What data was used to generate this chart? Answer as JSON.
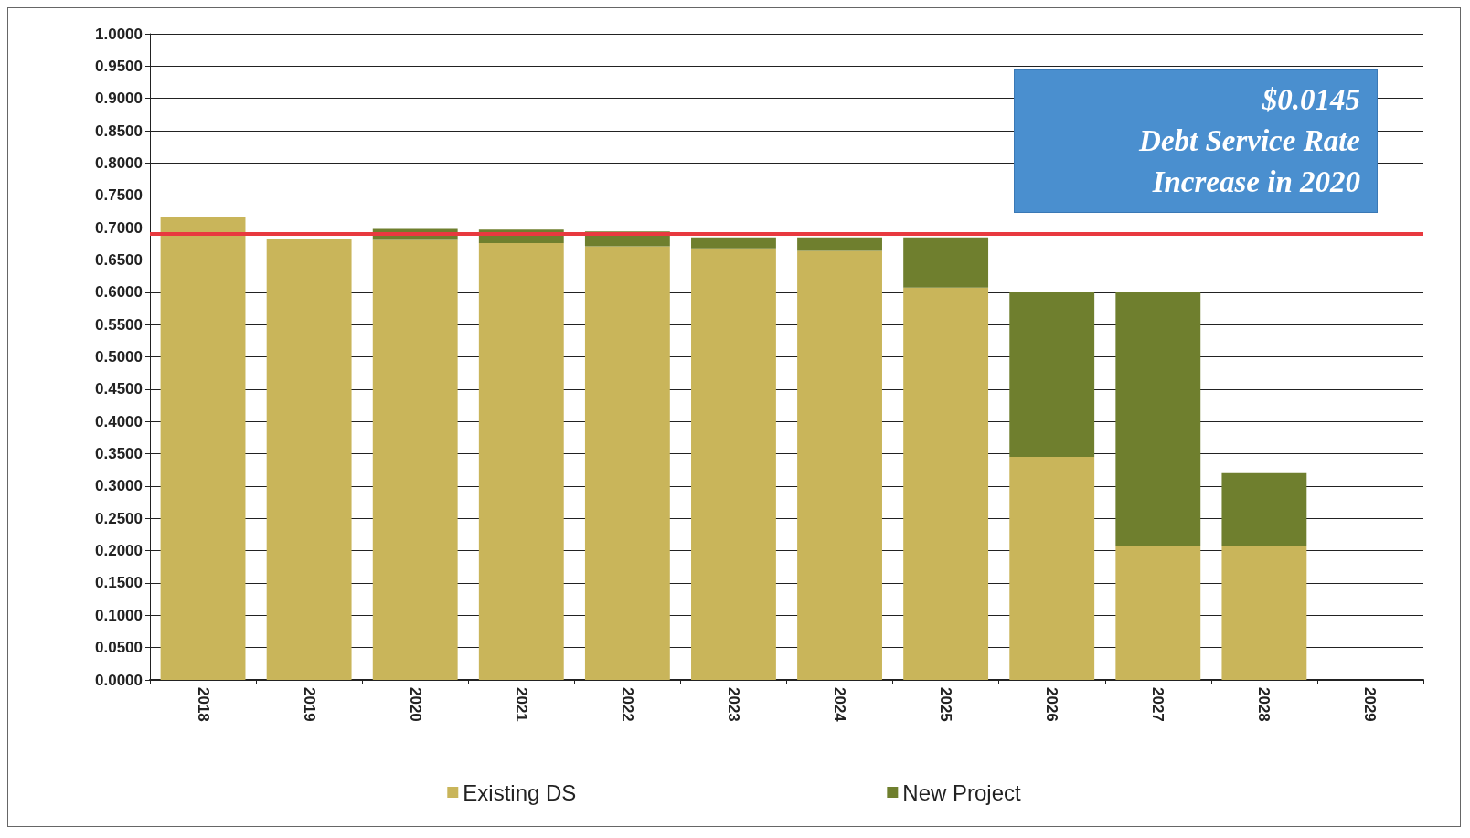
{
  "chart_data": {
    "type": "bar",
    "stacked": true,
    "categories": [
      "2018",
      "2019",
      "2020",
      "2021",
      "2022",
      "2023",
      "2024",
      "2025",
      "2026",
      "2027",
      "2028",
      "2029"
    ],
    "series": [
      {
        "name": "Existing DS",
        "color": "#c9b55a",
        "values": [
          0.716,
          0.682,
          0.681,
          0.676,
          0.671,
          0.668,
          0.664,
          0.607,
          0.345,
          0.207,
          0.207,
          0
        ]
      },
      {
        "name": "New Project",
        "color": "#6f7f2e",
        "values": [
          0,
          0,
          0.017,
          0.021,
          0.023,
          0.017,
          0.021,
          0.078,
          0.255,
          0.393,
          0.113,
          0
        ]
      }
    ],
    "ylim": [
      0,
      1
    ],
    "yticks": [
      {
        "value": 0,
        "label": "0.0000"
      },
      {
        "value": 0.05,
        "label": "0.0500"
      },
      {
        "value": 0.1,
        "label": "0.1000"
      },
      {
        "value": 0.15,
        "label": "0.1500"
      },
      {
        "value": 0.2,
        "label": "0.2000"
      },
      {
        "value": 0.25,
        "label": "0.2500"
      },
      {
        "value": 0.3,
        "label": "0.3000"
      },
      {
        "value": 0.35,
        "label": "0.3500"
      },
      {
        "value": 0.4,
        "label": "0.4000"
      },
      {
        "value": 0.45,
        "label": "0.4500"
      },
      {
        "value": 0.5,
        "label": "0.5000"
      },
      {
        "value": 0.55,
        "label": "0.5500"
      },
      {
        "value": 0.6,
        "label": "0.6000"
      },
      {
        "value": 0.65,
        "label": "0.6500"
      },
      {
        "value": 0.7,
        "label": "0.7000"
      },
      {
        "value": 0.75,
        "label": "0.7500"
      },
      {
        "value": 0.8,
        "label": "0.8000"
      },
      {
        "value": 0.85,
        "label": "0.8500"
      },
      {
        "value": 0.9,
        "label": "0.9000"
      },
      {
        "value": 0.95,
        "label": "0.9500"
      },
      {
        "value": 1,
        "label": "1.0000"
      }
    ],
    "ref_lines": [
      {
        "axis": "y",
        "value": 0.688,
        "color": "#e8393f"
      }
    ],
    "annotations": [
      "$0.0145\nDebt Service Rate\nIncrease in 2020"
    ],
    "grid": "y",
    "legend": "bottom"
  }
}
